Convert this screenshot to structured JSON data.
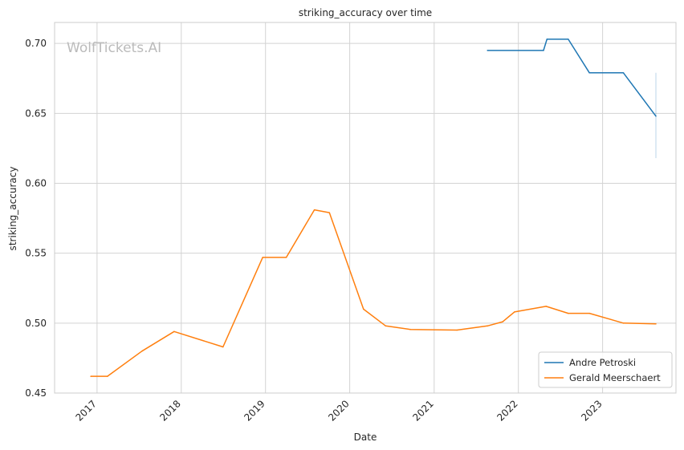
{
  "chart_data": {
    "type": "line",
    "title": "striking_accuracy over time",
    "xlabel": "Date",
    "ylabel": "striking_accuracy",
    "watermark": "WolfTickets.AI",
    "x_ticks": [
      "2017",
      "2018",
      "2019",
      "2020",
      "2021",
      "2022",
      "2023"
    ],
    "y_ticks": [
      "0.45",
      "0.50",
      "0.55",
      "0.60",
      "0.65",
      "0.70"
    ],
    "xlim": [
      "2016-07-01",
      "2023-11-15"
    ],
    "ylim": [
      0.45,
      0.715
    ],
    "grid": true,
    "legend_position": "lower-right",
    "series": [
      {
        "name": "Andre Petroski",
        "color": "#1f77b4",
        "points": [
          {
            "x": "2021-08-20",
            "y": 0.695
          },
          {
            "x": "2022-04-20",
            "y": 0.695
          },
          {
            "x": "2022-05-05",
            "y": 0.703
          },
          {
            "x": "2022-08-05",
            "y": 0.703
          },
          {
            "x": "2022-11-05",
            "y": 0.679
          },
          {
            "x": "2023-04-01",
            "y": 0.679
          },
          {
            "x": "2023-08-20",
            "y": 0.648
          }
        ],
        "error_band": {
          "x": "2023-08-20",
          "low": 0.618,
          "high": 0.679
        }
      },
      {
        "name": "Gerald Meerschaert",
        "color": "#ff7f0e",
        "points": [
          {
            "x": "2016-12-05",
            "y": 0.462
          },
          {
            "x": "2017-02-15",
            "y": 0.462
          },
          {
            "x": "2017-07-15",
            "y": 0.48
          },
          {
            "x": "2017-12-01",
            "y": 0.494
          },
          {
            "x": "2018-07-01",
            "y": 0.483
          },
          {
            "x": "2018-12-20",
            "y": 0.547
          },
          {
            "x": "2019-04-01",
            "y": 0.547
          },
          {
            "x": "2019-08-01",
            "y": 0.581
          },
          {
            "x": "2019-10-05",
            "y": 0.579
          },
          {
            "x": "2020-03-01",
            "y": 0.51
          },
          {
            "x": "2020-06-05",
            "y": 0.498
          },
          {
            "x": "2020-09-20",
            "y": 0.4955
          },
          {
            "x": "2021-04-10",
            "y": 0.495
          },
          {
            "x": "2021-08-20",
            "y": 0.498
          },
          {
            "x": "2021-10-25",
            "y": 0.501
          },
          {
            "x": "2021-12-15",
            "y": 0.508
          },
          {
            "x": "2022-05-01",
            "y": 0.512
          },
          {
            "x": "2022-08-05",
            "y": 0.507
          },
          {
            "x": "2022-11-05",
            "y": 0.507
          },
          {
            "x": "2023-04-01",
            "y": 0.5
          },
          {
            "x": "2023-08-20",
            "y": 0.4995
          }
        ]
      }
    ]
  }
}
